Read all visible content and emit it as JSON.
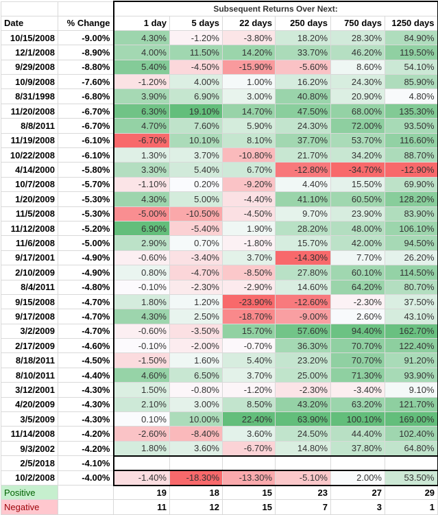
{
  "super_header": "Subsequent Returns Over Next:",
  "columns": [
    "Date",
    "% Change",
    "1 day",
    "5 days",
    "22 days",
    "250 days",
    "750 days",
    "1250 days"
  ],
  "rows": [
    {
      "date": "10/15/2008",
      "chg": "-9.00%",
      "r": [
        "4.30%",
        "-1.20%",
        "-3.80%",
        "18.20%",
        "28.30%",
        "84.90%"
      ]
    },
    {
      "date": "12/1/2008",
      "chg": "-8.90%",
      "r": [
        "4.00%",
        "11.50%",
        "14.20%",
        "33.70%",
        "46.20%",
        "119.50%"
      ]
    },
    {
      "date": "9/29/2008",
      "chg": "-8.80%",
      "r": [
        "5.40%",
        "-4.50%",
        "-15.90%",
        "-5.60%",
        "8.60%",
        "54.10%"
      ]
    },
    {
      "date": "10/9/2008",
      "chg": "-7.60%",
      "r": [
        "-1.20%",
        "4.00%",
        "1.00%",
        "16.20%",
        "24.30%",
        "85.90%"
      ]
    },
    {
      "date": "8/31/1998",
      "chg": "-6.80%",
      "r": [
        "3.90%",
        "6.90%",
        "3.00%",
        "40.80%",
        "20.90%",
        "4.80%"
      ]
    },
    {
      "date": "11/20/2008",
      "chg": "-6.70%",
      "r": [
        "6.30%",
        "19.10%",
        "14.70%",
        "47.50%",
        "68.00%",
        "135.30%"
      ]
    },
    {
      "date": "8/8/2011",
      "chg": "-6.70%",
      "r": [
        "4.70%",
        "7.60%",
        "5.90%",
        "24.30%",
        "72.00%",
        "93.50%"
      ]
    },
    {
      "date": "11/19/2008",
      "chg": "-6.10%",
      "r": [
        "-6.70%",
        "10.10%",
        "8.10%",
        "37.70%",
        "53.70%",
        "116.60%"
      ]
    },
    {
      "date": "10/22/2008",
      "chg": "-6.10%",
      "r": [
        "1.30%",
        "3.70%",
        "-10.80%",
        "21.70%",
        "34.20%",
        "88.70%"
      ]
    },
    {
      "date": "4/14/2000",
      "chg": "-5.80%",
      "r": [
        "3.30%",
        "5.40%",
        "6.70%",
        "-12.80%",
        "-34.70%",
        "-12.90%"
      ]
    },
    {
      "date": "10/7/2008",
      "chg": "-5.70%",
      "r": [
        "-1.10%",
        "0.20%",
        "-9.20%",
        "4.40%",
        "15.50%",
        "69.90%"
      ]
    },
    {
      "date": "1/20/2009",
      "chg": "-5.30%",
      "r": [
        "4.30%",
        "5.00%",
        "-4.40%",
        "41.10%",
        "60.50%",
        "128.20%"
      ]
    },
    {
      "date": "11/5/2008",
      "chg": "-5.30%",
      "r": [
        "-5.00%",
        "-10.50%",
        "-4.50%",
        "9.70%",
        "23.90%",
        "83.90%"
      ]
    },
    {
      "date": "11/12/2008",
      "chg": "-5.20%",
      "r": [
        "6.90%",
        "-5.40%",
        "1.90%",
        "28.20%",
        "48.00%",
        "106.10%"
      ]
    },
    {
      "date": "11/6/2008",
      "chg": "-5.00%",
      "r": [
        "2.90%",
        "0.70%",
        "-1.80%",
        "15.70%",
        "42.00%",
        "94.50%"
      ]
    },
    {
      "date": "9/17/2001",
      "chg": "-4.90%",
      "r": [
        "-0.60%",
        "-3.40%",
        "3.70%",
        "-14.30%",
        "7.70%",
        "26.20%"
      ]
    },
    {
      "date": "2/10/2009",
      "chg": "-4.90%",
      "r": [
        "0.80%",
        "-4.70%",
        "-8.50%",
        "27.80%",
        "60.10%",
        "114.50%"
      ]
    },
    {
      "date": "8/4/2011",
      "chg": "-4.80%",
      "r": [
        "-0.10%",
        "-2.30%",
        "-2.90%",
        "14.60%",
        "64.20%",
        "80.70%"
      ]
    },
    {
      "date": "9/15/2008",
      "chg": "-4.70%",
      "r": [
        "1.80%",
        "1.20%",
        "-23.90%",
        "-12.60%",
        "-2.30%",
        "37.50%"
      ]
    },
    {
      "date": "9/17/2008",
      "chg": "-4.70%",
      "r": [
        "4.30%",
        "2.50%",
        "-18.70%",
        "-9.00%",
        "2.60%",
        "43.10%"
      ]
    },
    {
      "date": "3/2/2009",
      "chg": "-4.70%",
      "r": [
        "-0.60%",
        "-3.50%",
        "15.70%",
        "57.60%",
        "94.40%",
        "162.70%"
      ]
    },
    {
      "date": "2/17/2009",
      "chg": "-4.60%",
      "r": [
        "-0.10%",
        "-2.00%",
        "-0.70%",
        "36.30%",
        "70.70%",
        "122.40%"
      ]
    },
    {
      "date": "8/18/2011",
      "chg": "-4.50%",
      "r": [
        "-1.50%",
        "1.60%",
        "5.40%",
        "23.20%",
        "70.70%",
        "91.20%"
      ]
    },
    {
      "date": "8/10/2011",
      "chg": "-4.40%",
      "r": [
        "4.60%",
        "6.50%",
        "3.70%",
        "25.00%",
        "71.30%",
        "93.90%"
      ]
    },
    {
      "date": "3/12/2001",
      "chg": "-4.30%",
      "r": [
        "1.50%",
        "-0.80%",
        "-1.20%",
        "-2.30%",
        "-3.40%",
        "9.10%"
      ]
    },
    {
      "date": "4/20/2009",
      "chg": "-4.30%",
      "r": [
        "2.10%",
        "3.00%",
        "8.50%",
        "43.20%",
        "63.20%",
        "121.70%"
      ]
    },
    {
      "date": "3/5/2009",
      "chg": "-4.30%",
      "r": [
        "0.10%",
        "10.00%",
        "22.40%",
        "63.90%",
        "100.10%",
        "169.00%"
      ]
    },
    {
      "date": "11/14/2008",
      "chg": "-4.20%",
      "r": [
        "-2.60%",
        "-8.40%",
        "3.60%",
        "24.50%",
        "44.40%",
        "102.40%"
      ]
    },
    {
      "date": "9/3/2002",
      "chg": "-4.20%",
      "r": [
        "1.80%",
        "3.60%",
        "-6.70%",
        "14.80%",
        "37.80%",
        "64.80%"
      ]
    },
    {
      "date": "2/5/2018",
      "chg": "-4.10%",
      "r": [
        "",
        "",
        "",
        "",
        "",
        ""
      ]
    },
    {
      "date": "10/2/2008",
      "chg": "-4.00%",
      "r": [
        "-1.40%",
        "-18.30%",
        "-13.30%",
        "-5.10%",
        "2.00%",
        "53.50%"
      ]
    }
  ],
  "summary": [
    {
      "label": "Positive",
      "counts": [
        "19",
        "18",
        "15",
        "23",
        "27",
        "29"
      ]
    },
    {
      "label": "Negative",
      "counts": [
        "11",
        "12",
        "15",
        "7",
        "3",
        "1"
      ]
    }
  ],
  "colors": {
    "positive_max": "#63be7b",
    "negative_max": "#f8696b",
    "neutral": "#fcfcff",
    "positive_label_bg": "#c6efce",
    "negative_label_bg": "#ffc7ce"
  }
}
